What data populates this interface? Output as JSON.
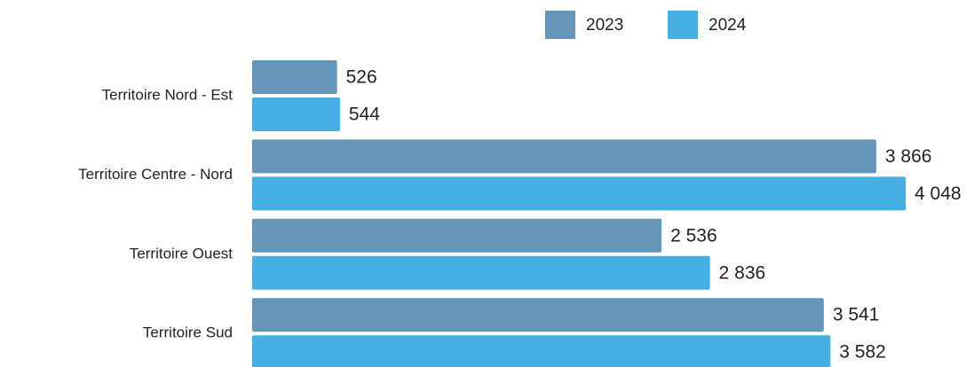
{
  "chart_data": {
    "type": "bar",
    "orientation": "horizontal",
    "categories": [
      "Territoire Nord - Est",
      "Territoire Centre - Nord",
      "Territoire Ouest",
      "Territoire Sud"
    ],
    "series": [
      {
        "name": "2023",
        "color": "#6595b8",
        "values": [
          526,
          3866,
          2536,
          3541
        ],
        "value_labels": [
          "526",
          "3 866",
          "2 536",
          "3 541"
        ]
      },
      {
        "name": "2024",
        "color": "#45aee3",
        "values": [
          544,
          4048,
          2836,
          3582
        ],
        "value_labels": [
          "544",
          "4 048",
          "2 836",
          "3 582"
        ]
      }
    ]
  }
}
